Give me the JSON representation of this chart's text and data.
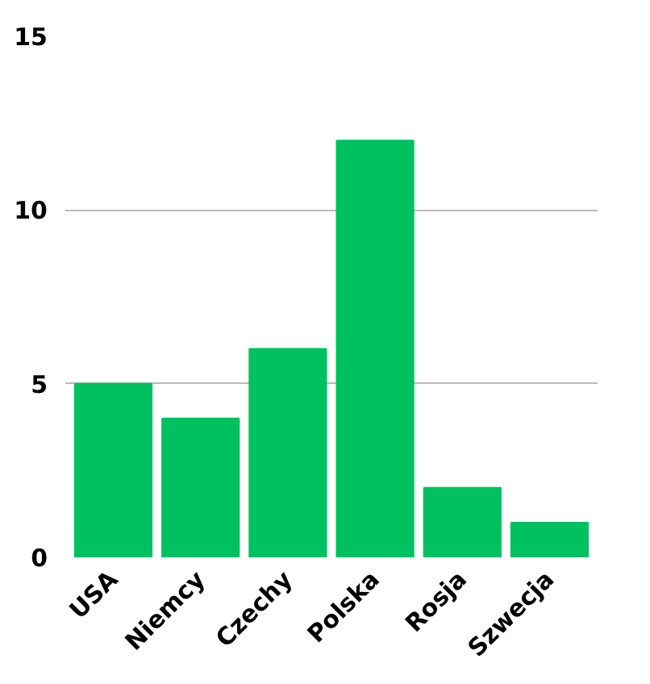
{
  "chart_data": {
    "type": "bar",
    "categories": [
      "USA",
      "Niemcy",
      "Czechy",
      "Polska",
      "Rosja",
      "Szwecja"
    ],
    "values": [
      5,
      4,
      6,
      12,
      2,
      1
    ],
    "color": "#00c060",
    "ylim": [
      0,
      15
    ],
    "yticks": [
      0,
      5,
      10,
      15
    ],
    "grid": "y"
  }
}
